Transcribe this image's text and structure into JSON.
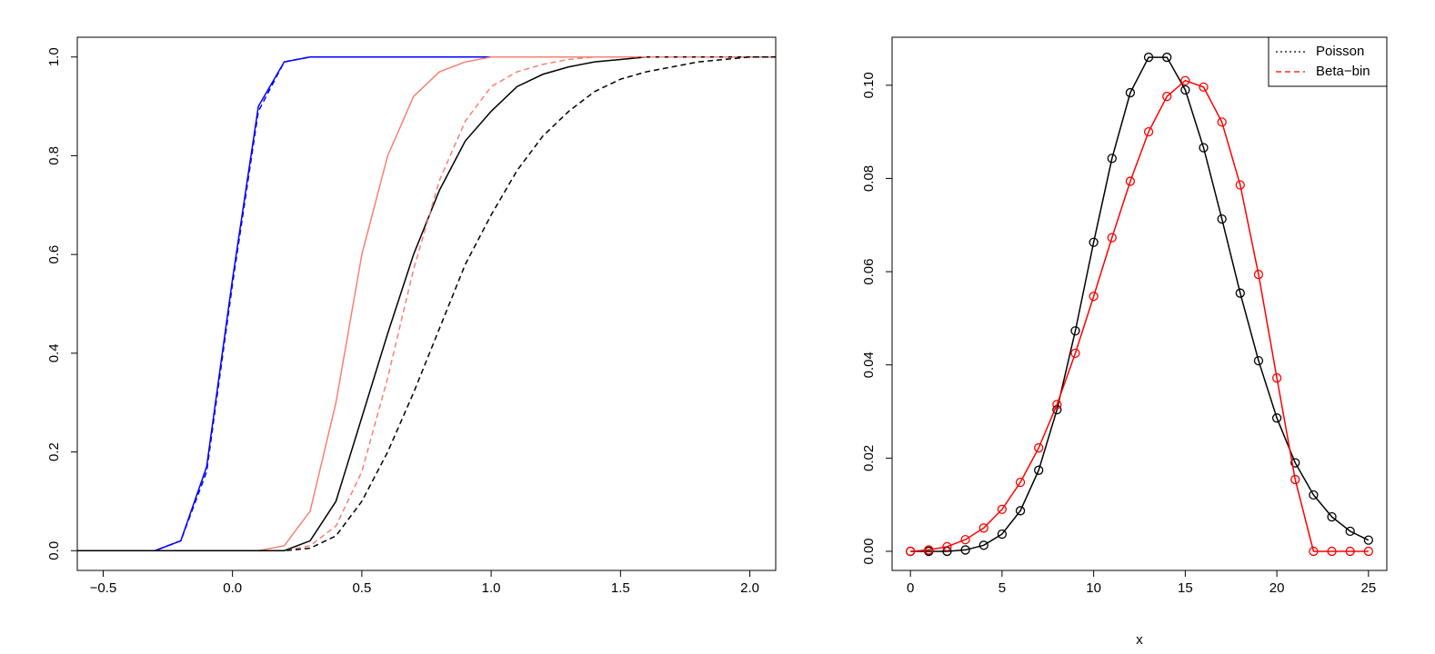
{
  "chart_data": [
    {
      "type": "line",
      "x": [
        -0.6,
        -0.5,
        -0.4,
        -0.3,
        -0.2,
        -0.1,
        0,
        0.1,
        0.2,
        0.3,
        0.4,
        0.5,
        0.6,
        0.7,
        0.8,
        0.9,
        1.0,
        1.1,
        1.2,
        1.3,
        1.4,
        1.5,
        1.6,
        1.7,
        1.8,
        1.9,
        2.0,
        2.1
      ],
      "series": [
        {
          "color": "#0000ff",
          "dash": "solid",
          "values": [
            0,
            0,
            0,
            0,
            0.02,
            0.17,
            0.55,
            0.9,
            0.99,
            1,
            1,
            1,
            1,
            1,
            1,
            1,
            1,
            1,
            1,
            1,
            1,
            1,
            1,
            1,
            1,
            1,
            1,
            1
          ]
        },
        {
          "color": "#0000ff",
          "dash": "dashed",
          "values": [
            0,
            0,
            0,
            0,
            0.02,
            0.16,
            0.54,
            0.89,
            0.99,
            1,
            1,
            1,
            1,
            1,
            1,
            1,
            1,
            1,
            1,
            1,
            1,
            1,
            1,
            1,
            1,
            1,
            1,
            1
          ]
        },
        {
          "color": "#fa8072",
          "dash": "solid",
          "values": [
            0,
            0,
            0,
            0,
            0,
            0,
            0,
            0,
            0.01,
            0.08,
            0.3,
            0.6,
            0.8,
            0.92,
            0.97,
            0.99,
            1,
            1,
            1,
            1,
            1,
            1,
            1,
            1,
            1,
            1,
            1,
            1
          ]
        },
        {
          "color": "#000000",
          "dash": "solid",
          "values": [
            0,
            0,
            0,
            0,
            0,
            0,
            0,
            0,
            0,
            0.02,
            0.1,
            0.27,
            0.44,
            0.6,
            0.73,
            0.83,
            0.89,
            0.94,
            0.965,
            0.98,
            0.99,
            0.995,
            1,
            1,
            1,
            1,
            1,
            1
          ]
        },
        {
          "color": "#fa8072",
          "dash": "dashed",
          "values": [
            0,
            0,
            0,
            0,
            0,
            0,
            0,
            0,
            0,
            0.01,
            0.05,
            0.16,
            0.35,
            0.57,
            0.75,
            0.87,
            0.94,
            0.97,
            0.985,
            0.995,
            1,
            1,
            1,
            1,
            1,
            1,
            1,
            1
          ]
        },
        {
          "color": "#000000",
          "dash": "dashed",
          "values": [
            0,
            0,
            0,
            0,
            0,
            0,
            0,
            0,
            0,
            0.005,
            0.03,
            0.1,
            0.2,
            0.32,
            0.45,
            0.58,
            0.68,
            0.77,
            0.84,
            0.89,
            0.93,
            0.955,
            0.97,
            0.98,
            0.99,
            0.995,
            1,
            1
          ]
        }
      ],
      "xlim": [
        -0.6,
        2.1
      ],
      "xticks": [
        {
          "value": -0.5,
          "label": "−0.5"
        },
        {
          "value": 0,
          "label": "0.0"
        },
        {
          "value": 0.5,
          "label": "0.5"
        },
        {
          "value": 1,
          "label": "1.0"
        },
        {
          "value": 1.5,
          "label": "1.5"
        },
        {
          "value": 2,
          "label": "2.0"
        }
      ],
      "ylim": [
        -0.04,
        1.04
      ],
      "yticks": [
        {
          "value": 0,
          "label": "0.0"
        },
        {
          "value": 0.2,
          "label": "0.2"
        },
        {
          "value": 0.4,
          "label": "0.4"
        },
        {
          "value": 0.6,
          "label": "0.6"
        },
        {
          "value": 0.8,
          "label": "0.8"
        },
        {
          "value": 1,
          "label": "1.0"
        }
      ]
    },
    {
      "type": "line-points",
      "x_label": "x",
      "x": [
        0,
        1,
        2,
        3,
        4,
        5,
        6,
        7,
        8,
        9,
        10,
        11,
        12,
        13,
        14,
        15,
        16,
        17,
        18,
        19,
        20,
        21,
        22,
        23,
        24,
        25
      ],
      "series": [
        {
          "name": "Poisson",
          "color": "#000000",
          "legend_dash": "dotted",
          "values": [
            0,
            0,
            0,
            0.0003,
            0.0013,
            0.0037,
            0.0087,
            0.0174,
            0.0304,
            0.0473,
            0.0663,
            0.0843,
            0.0984,
            0.106,
            0.106,
            0.099,
            0.0866,
            0.0713,
            0.0554,
            0.0409,
            0.0286,
            0.019,
            0.0121,
            0.0074,
            0.0043,
            0.0024
          ]
        },
        {
          "name": "Beta−bin",
          "color": "#ff0000",
          "legend_dash": "dashed",
          "values": [
            0,
            0.0003,
            0.001,
            0.0025,
            0.005,
            0.009,
            0.0148,
            0.0222,
            0.0315,
            0.0425,
            0.0547,
            0.0673,
            0.0794,
            0.09,
            0.0976,
            0.101,
            0.0996,
            0.0921,
            0.0786,
            0.0594,
            0.0372,
            0.0154,
            0,
            0,
            0,
            0
          ]
        }
      ],
      "xlim": [
        -1,
        26
      ],
      "xticks": [
        0,
        5,
        10,
        15,
        20,
        25
      ],
      "ylim": [
        -0.0041,
        0.1103
      ],
      "yticks": [
        {
          "value": 0,
          "label": "0.00"
        },
        {
          "value": 0.02,
          "label": "0.02"
        },
        {
          "value": 0.04,
          "label": "0.04"
        },
        {
          "value": 0.06,
          "label": "0.06"
        },
        {
          "value": 0.08,
          "label": "0.08"
        },
        {
          "value": 0.1,
          "label": "0.10"
        }
      ],
      "legend": "top-right"
    }
  ]
}
